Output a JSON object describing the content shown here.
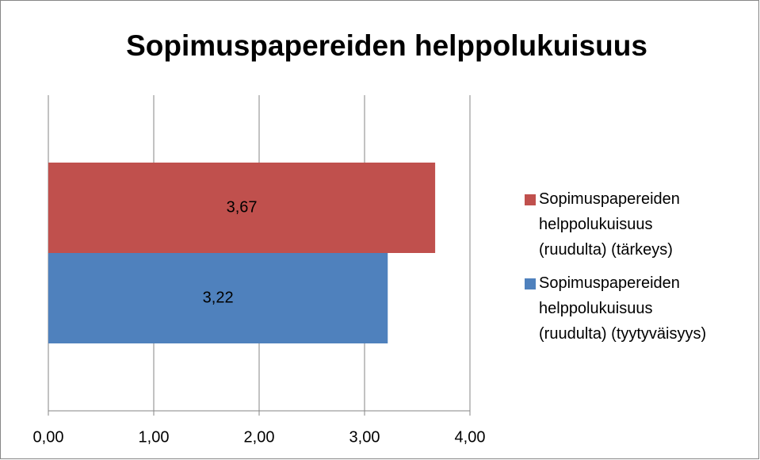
{
  "chart_data": {
    "type": "bar",
    "orientation": "horizontal",
    "title": "Sopimuspapereiden helppolukuisuus",
    "categories": [
      null
    ],
    "series": [
      {
        "name": "Sopimuspapereiden helppolukuisuus (ruudulta) (tärkeys)",
        "color": "#c0504d",
        "values": [
          3.67
        ],
        "value_labels": [
          "3,67"
        ]
      },
      {
        "name": "Sopimuspapereiden helppolukuisuus (ruudulta) (tyytyväisyys)",
        "color": "#4f81bd",
        "values": [
          3.22
        ],
        "value_labels": [
          "3,22"
        ]
      }
    ],
    "xlim": [
      0,
      4
    ],
    "xticks": [
      {
        "value": 0,
        "label": "0,00"
      },
      {
        "value": 1,
        "label": "1,00"
      },
      {
        "value": 2,
        "label": "2,00"
      },
      {
        "value": 3,
        "label": "3,00"
      },
      {
        "value": 4,
        "label": "4,00"
      }
    ],
    "grid": true,
    "legend": "right"
  }
}
